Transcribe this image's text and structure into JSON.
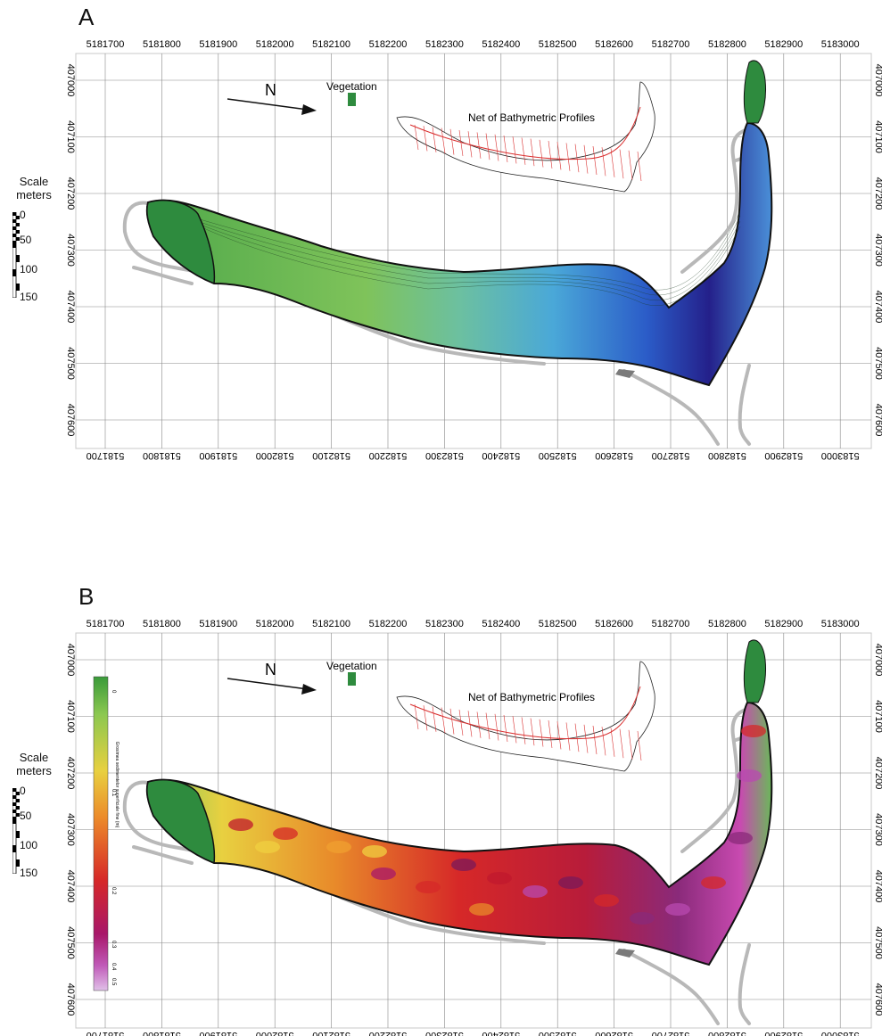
{
  "panels": [
    {
      "id": "A",
      "label": "A",
      "x_ticks": [
        "5181700",
        "5181800",
        "5181900",
        "5182000",
        "5182100",
        "5182200",
        "5182300",
        "5182400",
        "5182500",
        "5182600",
        "5182700",
        "5182800",
        "5182900",
        "5183000"
      ],
      "y_ticks": [
        "407000",
        "407100",
        "407200",
        "407300",
        "407400",
        "407500",
        "407600"
      ],
      "north": "N",
      "vegetation": "Vegetation",
      "net_title": "Net of Bathymetric Profiles",
      "scale_title": [
        "Scale",
        "meters"
      ],
      "scale_values": [
        "0",
        "50",
        "100",
        "150"
      ],
      "fill_type": "bathymetry"
    },
    {
      "id": "B",
      "label": "B",
      "x_ticks": [
        "5181700",
        "5181800",
        "5181900",
        "5182000",
        "5182100",
        "5182200",
        "5182300",
        "5182400",
        "5182500",
        "5182600",
        "5182700",
        "5182800",
        "5182900",
        "5183000"
      ],
      "y_ticks": [
        "407000",
        "407100",
        "407200",
        "407300",
        "407400",
        "407500",
        "407600"
      ],
      "north": "N",
      "vegetation": "Vegetation",
      "net_title": "Net of Bathymetric Profiles",
      "scale_title": [
        "Scale",
        "meters"
      ],
      "scale_values": [
        "0",
        "50",
        "100",
        "150"
      ],
      "fill_type": "sediment",
      "colorbar": {
        "title": "Grosimea sedimentelor superficiale fine (m)",
        "ticks": [
          "0",
          "0.1",
          "0.2",
          "0.3",
          "0.4",
          "0.5"
        ]
      }
    }
  ],
  "colors": {
    "vegetation": "#2e8b3e",
    "grid": "#888888",
    "road": "#b8b8b8",
    "profiles": "#d93030",
    "outline": "#111111"
  }
}
